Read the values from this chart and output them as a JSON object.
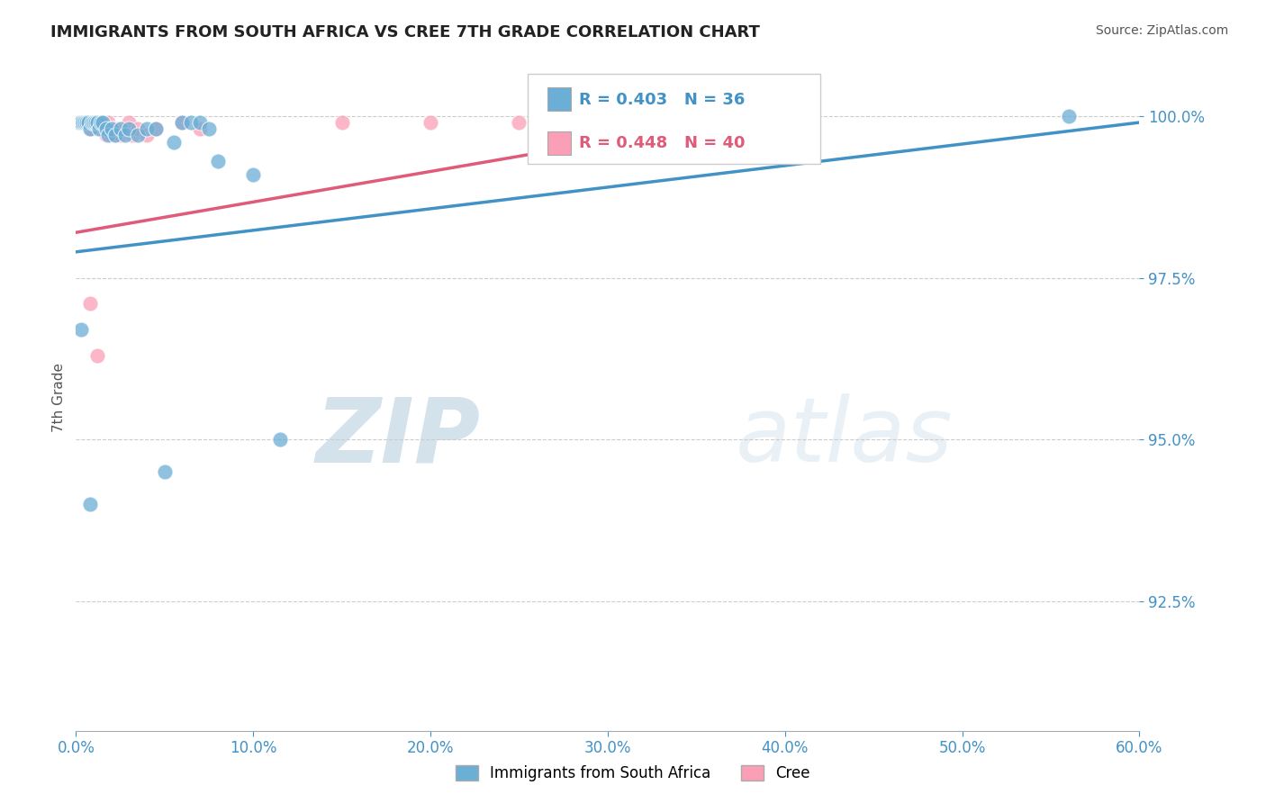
{
  "title": "IMMIGRANTS FROM SOUTH AFRICA VS CREE 7TH GRADE CORRELATION CHART",
  "source": "Source: ZipAtlas.com",
  "ylabel": "7th Grade",
  "yaxis_values": [
    1.0,
    0.975,
    0.95,
    0.925
  ],
  "xaxis_min": 0.0,
  "xaxis_max": 0.6,
  "yaxis_min": 0.905,
  "yaxis_max": 1.008,
  "legend_blue_r": "0.403",
  "legend_blue_n": "36",
  "legend_pink_r": "0.448",
  "legend_pink_n": "40",
  "blue_color": "#6baed6",
  "pink_color": "#fa9fb5",
  "blue_line_color": "#4292c6",
  "pink_line_color": "#e05a7a",
  "blue_scatter": [
    [
      0.002,
      0.999
    ],
    [
      0.003,
      0.999
    ],
    [
      0.004,
      0.999
    ],
    [
      0.005,
      0.999
    ],
    [
      0.006,
      0.999
    ],
    [
      0.007,
      0.999
    ],
    [
      0.008,
      0.998
    ],
    [
      0.009,
      0.999
    ],
    [
      0.01,
      0.999
    ],
    [
      0.011,
      0.999
    ],
    [
      0.012,
      0.999
    ],
    [
      0.013,
      0.998
    ],
    [
      0.014,
      0.999
    ],
    [
      0.015,
      0.999
    ],
    [
      0.017,
      0.998
    ],
    [
      0.018,
      0.997
    ],
    [
      0.02,
      0.998
    ],
    [
      0.022,
      0.997
    ],
    [
      0.025,
      0.998
    ],
    [
      0.028,
      0.997
    ],
    [
      0.03,
      0.998
    ],
    [
      0.035,
      0.997
    ],
    [
      0.04,
      0.998
    ],
    [
      0.045,
      0.998
    ],
    [
      0.055,
      0.996
    ],
    [
      0.06,
      0.999
    ],
    [
      0.065,
      0.999
    ],
    [
      0.07,
      0.999
    ],
    [
      0.075,
      0.998
    ],
    [
      0.08,
      0.993
    ],
    [
      0.1,
      0.991
    ],
    [
      0.003,
      0.967
    ],
    [
      0.05,
      0.945
    ],
    [
      0.008,
      0.94
    ],
    [
      0.56,
      1.0
    ],
    [
      0.115,
      0.95
    ]
  ],
  "pink_scatter": [
    [
      0.002,
      0.999
    ],
    [
      0.003,
      0.999
    ],
    [
      0.004,
      0.999
    ],
    [
      0.005,
      0.999
    ],
    [
      0.006,
      0.999
    ],
    [
      0.007,
      0.999
    ],
    [
      0.008,
      0.998
    ],
    [
      0.009,
      0.999
    ],
    [
      0.01,
      0.999
    ],
    [
      0.011,
      0.999
    ],
    [
      0.012,
      0.999
    ],
    [
      0.013,
      0.998
    ],
    [
      0.014,
      0.999
    ],
    [
      0.015,
      0.999
    ],
    [
      0.016,
      0.998
    ],
    [
      0.017,
      0.997
    ],
    [
      0.018,
      0.999
    ],
    [
      0.019,
      0.998
    ],
    [
      0.02,
      0.997
    ],
    [
      0.021,
      0.998
    ],
    [
      0.022,
      0.997
    ],
    [
      0.023,
      0.998
    ],
    [
      0.025,
      0.997
    ],
    [
      0.028,
      0.998
    ],
    [
      0.03,
      0.999
    ],
    [
      0.032,
      0.997
    ],
    [
      0.035,
      0.998
    ],
    [
      0.04,
      0.997
    ],
    [
      0.045,
      0.998
    ],
    [
      0.06,
      0.999
    ],
    [
      0.07,
      0.998
    ],
    [
      0.008,
      0.971
    ],
    [
      0.012,
      0.963
    ],
    [
      0.15,
      0.999
    ],
    [
      0.2,
      0.999
    ],
    [
      0.25,
      0.999
    ],
    [
      0.28,
      0.999
    ],
    [
      0.3,
      0.999
    ],
    [
      0.31,
      0.999
    ],
    [
      0.32,
      0.999
    ]
  ],
  "blue_line_x": [
    0.0,
    0.6
  ],
  "blue_line_y": [
    0.979,
    0.999
  ],
  "pink_line_x": [
    0.0,
    0.35
  ],
  "pink_line_y": [
    0.982,
    0.9985
  ],
  "watermark_zip": "ZIP",
  "watermark_atlas": "atlas",
  "background_color": "#ffffff",
  "grid_color": "#cccccc",
  "title_color": "#222222",
  "axis_label_color": "#4292c6"
}
